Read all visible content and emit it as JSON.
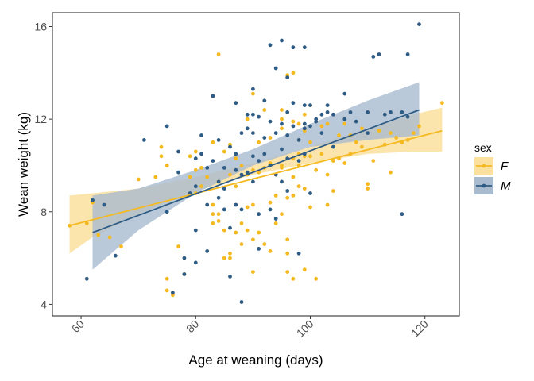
{
  "chart_data": {
    "type": "scatter",
    "title": "",
    "xlabel": "Age at weaning (days)",
    "ylabel": "Wean weight (kg)",
    "xlim": [
      55,
      126
    ],
    "ylim": [
      3.5,
      16.6
    ],
    "x_ticks": [
      60,
      80,
      100,
      120
    ],
    "y_ticks": [
      4,
      8,
      12,
      16
    ],
    "x_tick_labels": [
      "60",
      "80",
      "100",
      "120"
    ],
    "y_tick_labels": [
      "4",
      "8",
      "12",
      "16"
    ],
    "x_tick_label_rotation": -45,
    "grid": false,
    "legend": {
      "title": "sex",
      "placement": "right",
      "entries": [
        {
          "label": "F",
          "color": "#F5B921",
          "band_color": "#FCE19E"
        },
        {
          "label": "M",
          "color": "#2F5C85",
          "band_color": "#A9BCCF"
        }
      ]
    },
    "series": [
      {
        "name": "F",
        "color": "#F5B921",
        "trend": {
          "x": [
            58,
            123
          ],
          "y": [
            7.4,
            11.5
          ]
        },
        "band": {
          "x": [
            58,
            62,
            70,
            80,
            90,
            100,
            110,
            118,
            123
          ],
          "lower": [
            6.2,
            6.9,
            7.9,
            8.9,
            9.6,
            10.1,
            10.5,
            10.6,
            10.6
          ],
          "upper": [
            8.7,
            8.8,
            9.0,
            9.5,
            10.1,
            10.8,
            11.6,
            12.2,
            12.5
          ]
        },
        "points": [
          [
            58,
            7.4
          ],
          [
            61,
            7.5
          ],
          [
            62,
            8.4
          ],
          [
            63,
            7.0
          ],
          [
            65,
            6.9
          ],
          [
            67,
            6.5
          ],
          [
            70,
            9.4
          ],
          [
            73,
            9.5
          ],
          [
            74,
            10.4
          ],
          [
            74,
            10.8
          ],
          [
            75,
            10.0
          ],
          [
            75,
            4.6
          ],
          [
            75,
            5.1
          ],
          [
            76,
            4.4
          ],
          [
            77,
            6.5
          ],
          [
            78,
            5.3
          ],
          [
            79,
            10.4
          ],
          [
            79,
            9.5
          ],
          [
            80,
            10.6
          ],
          [
            80,
            9.8
          ],
          [
            80,
            8.8
          ],
          [
            81,
            9.1
          ],
          [
            81,
            9.9
          ],
          [
            82,
            9.5
          ],
          [
            83,
            7.9
          ],
          [
            83,
            8.3
          ],
          [
            83,
            7.5
          ],
          [
            83,
            11.0
          ],
          [
            84,
            9.3
          ],
          [
            84,
            7.9
          ],
          [
            84,
            7.6
          ],
          [
            84,
            14.8
          ],
          [
            85,
            10.6
          ],
          [
            85,
            7.2
          ],
          [
            85,
            6.0
          ],
          [
            86,
            6.2
          ],
          [
            86,
            6.0
          ],
          [
            86,
            10.9
          ],
          [
            86,
            9.6
          ],
          [
            87,
            7.1
          ],
          [
            87,
            10.3
          ],
          [
            87,
            9.1
          ],
          [
            88,
            10.0
          ],
          [
            88,
            7.5
          ],
          [
            88,
            6.6
          ],
          [
            89,
            9.6
          ],
          [
            89,
            12.0
          ],
          [
            89,
            8.2
          ],
          [
            89,
            7.2
          ],
          [
            90,
            13.1
          ],
          [
            90,
            9.8
          ],
          [
            90,
            8.3
          ],
          [
            90,
            6.8
          ],
          [
            90,
            5.4
          ],
          [
            91,
            9.7
          ],
          [
            91,
            11.0
          ],
          [
            91,
            7.1
          ],
          [
            92,
            6.6
          ],
          [
            92,
            9.9
          ],
          [
            92,
            12.4
          ],
          [
            93,
            8.4
          ],
          [
            93,
            10.1
          ],
          [
            93,
            11.2
          ],
          [
            93,
            10.0
          ],
          [
            93,
            6.3
          ],
          [
            94,
            7.5
          ],
          [
            94,
            9.6
          ],
          [
            94,
            8.7
          ],
          [
            95,
            11.6
          ],
          [
            95,
            12.4
          ],
          [
            95,
            9.9
          ],
          [
            95,
            9.3
          ],
          [
            95,
            7.9
          ],
          [
            95,
            12.0
          ],
          [
            95,
            10.0
          ],
          [
            96,
            13.9
          ],
          [
            96,
            8.6
          ],
          [
            96,
            6.8
          ],
          [
            96,
            6.2
          ],
          [
            96,
            5.4
          ],
          [
            97,
            14.0
          ],
          [
            97,
            11.9
          ],
          [
            97,
            10.3
          ],
          [
            97,
            9.5
          ],
          [
            97,
            8.7
          ],
          [
            97,
            5.1
          ],
          [
            98,
            11.8
          ],
          [
            98,
            11.1
          ],
          [
            98,
            10.0
          ],
          [
            98,
            9.1
          ],
          [
            98,
            10.5
          ],
          [
            99,
            12.2
          ],
          [
            99,
            11.5
          ],
          [
            99,
            10.4
          ],
          [
            99,
            9.0
          ],
          [
            99,
            5.5
          ],
          [
            100,
            12.6
          ],
          [
            100,
            11.0
          ],
          [
            100,
            8.2
          ],
          [
            100,
            10.4
          ],
          [
            101,
            5.1
          ],
          [
            101,
            9.8
          ],
          [
            102,
            11.7
          ],
          [
            102,
            10.5
          ],
          [
            103,
            11.8
          ],
          [
            103,
            9.6
          ],
          [
            103,
            8.3
          ],
          [
            104,
            10.2
          ],
          [
            104,
            8.9
          ],
          [
            105,
            11.3
          ],
          [
            105,
            10.3
          ],
          [
            106,
            11.8
          ],
          [
            106,
            10.1
          ],
          [
            107,
            11.3
          ],
          [
            107,
            10.5
          ],
          [
            108,
            11.0
          ],
          [
            109,
            10.8
          ],
          [
            109,
            11.6
          ],
          [
            110,
            9.2
          ],
          [
            110,
            9.0
          ],
          [
            111,
            10.2
          ],
          [
            112,
            11.5
          ],
          [
            113,
            10.9
          ],
          [
            114,
            9.7
          ],
          [
            114,
            11.4
          ],
          [
            115,
            11.2
          ],
          [
            116,
            11.0
          ],
          [
            117,
            11.1
          ],
          [
            118,
            11.4
          ],
          [
            119,
            11.7
          ],
          [
            123,
            12.7
          ]
        ]
      },
      {
        "name": "M",
        "color": "#2F5C85",
        "trend": {
          "x": [
            62,
            119
          ],
          "y": [
            7.1,
            12.4
          ]
        },
        "band": {
          "x": [
            62,
            70,
            80,
            90,
            100,
            110,
            119
          ],
          "lower": [
            5.5,
            7.2,
            8.8,
            10.0,
            10.8,
            11.1,
            11.3
          ],
          "upper": [
            8.7,
            9.0,
            9.8,
            10.7,
            11.8,
            12.8,
            13.6
          ]
        },
        "points": [
          [
            61,
            5.1
          ],
          [
            62,
            8.5
          ],
          [
            64,
            8.3
          ],
          [
            66,
            6.1
          ],
          [
            71,
            11.1
          ],
          [
            75,
            8.0
          ],
          [
            75,
            11.7
          ],
          [
            76,
            4.5
          ],
          [
            77,
            9.7
          ],
          [
            77,
            10.6
          ],
          [
            78,
            5.3
          ],
          [
            78,
            6.0
          ],
          [
            79,
            8.8
          ],
          [
            80,
            10.3
          ],
          [
            80,
            9.1
          ],
          [
            80,
            5.8
          ],
          [
            80,
            7.2
          ],
          [
            81,
            11.3
          ],
          [
            81,
            10.5
          ],
          [
            82,
            8.3
          ],
          [
            82,
            6.3
          ],
          [
            82,
            9.9
          ],
          [
            83,
            13.0
          ],
          [
            83,
            10.2
          ],
          [
            84,
            11.1
          ],
          [
            84,
            8.6
          ],
          [
            84,
            9.3
          ],
          [
            85,
            9.9
          ],
          [
            85,
            8.1
          ],
          [
            85,
            9.0
          ],
          [
            86,
            5.2
          ],
          [
            86,
            10.8
          ],
          [
            86,
            7.3
          ],
          [
            87,
            12.7
          ],
          [
            87,
            10.5
          ],
          [
            87,
            9.8
          ],
          [
            87,
            8.3
          ],
          [
            88,
            11.4
          ],
          [
            88,
            8.1
          ],
          [
            88,
            9.6
          ],
          [
            88,
            4.1
          ],
          [
            89,
            11.6
          ],
          [
            89,
            12.2
          ],
          [
            89,
            9.7
          ],
          [
            90,
            13.3
          ],
          [
            90,
            12.2
          ],
          [
            90,
            10.4
          ],
          [
            90,
            11.4
          ],
          [
            90,
            9.3
          ],
          [
            91,
            12.1
          ],
          [
            91,
            10.2
          ],
          [
            91,
            7.9
          ],
          [
            91,
            6.4
          ],
          [
            92,
            12.8
          ],
          [
            92,
            11.2
          ],
          [
            92,
            10.5
          ],
          [
            93,
            15.2
          ],
          [
            93,
            11.9
          ],
          [
            93,
            10.0
          ],
          [
            93,
            8.1
          ],
          [
            94,
            11.4
          ],
          [
            94,
            14.2
          ],
          [
            94,
            9.6
          ],
          [
            94,
            7.7
          ],
          [
            95,
            15.4
          ],
          [
            95,
            11.8
          ],
          [
            95,
            10.7
          ],
          [
            95,
            9.3
          ],
          [
            96,
            13.8
          ],
          [
            96,
            12.3
          ],
          [
            96,
            11.3
          ],
          [
            96,
            10.3
          ],
          [
            96,
            8.9
          ],
          [
            97,
            12.7
          ],
          [
            97,
            11.7
          ],
          [
            97,
            15.1
          ],
          [
            98,
            10.2
          ],
          [
            98,
            6.2
          ],
          [
            98,
            11.1
          ],
          [
            99,
            15.1
          ],
          [
            99,
            12.6
          ],
          [
            99,
            11.6
          ],
          [
            99,
            10.5
          ],
          [
            99,
            11.8
          ],
          [
            100,
            12.6
          ],
          [
            100,
            11.7
          ],
          [
            100,
            8.8
          ],
          [
            101,
            11.9
          ],
          [
            101,
            12.0
          ],
          [
            102,
            12.2
          ],
          [
            102,
            11.4
          ],
          [
            103,
            12.6
          ],
          [
            103,
            12.3
          ],
          [
            104,
            12.2
          ],
          [
            104,
            10.8
          ],
          [
            106,
            13.1
          ],
          [
            106,
            12.0
          ],
          [
            107,
            12.3
          ],
          [
            108,
            11.9
          ],
          [
            110,
            12.3
          ],
          [
            110,
            11.4
          ],
          [
            111,
            14.7
          ],
          [
            112,
            14.8
          ],
          [
            113,
            12.2
          ],
          [
            114,
            12.3
          ],
          [
            116,
            12.3
          ],
          [
            116,
            7.9
          ],
          [
            117,
            14.8
          ],
          [
            117,
            12.1
          ],
          [
            119,
            16.1
          ]
        ]
      }
    ]
  }
}
